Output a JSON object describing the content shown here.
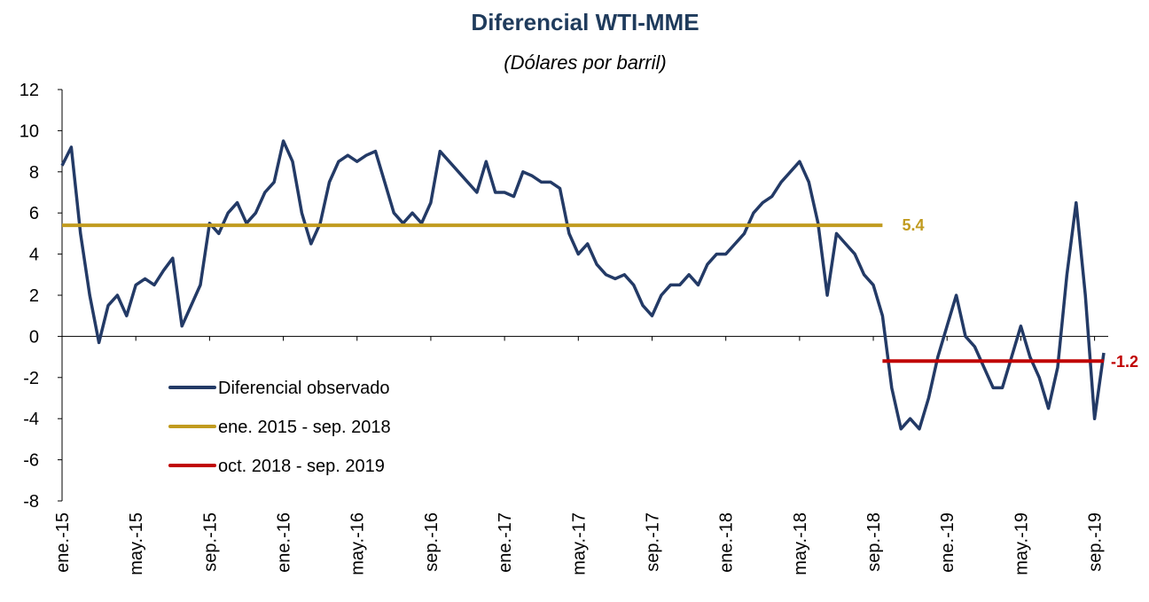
{
  "chart_data": {
    "type": "line",
    "title": "Diferencial WTI-MME",
    "subtitle": "(Dólares por barril)",
    "xlim": [
      0,
      56.5
    ],
    "xticks": [
      {
        "value": 0,
        "label": "ene.-15"
      },
      {
        "value": 4,
        "label": "may.-15"
      },
      {
        "value": 8,
        "label": "sep.-15"
      },
      {
        "value": 12,
        "label": "ene.-16"
      },
      {
        "value": 16,
        "label": "may.-16"
      },
      {
        "value": 20,
        "label": "sep.-16"
      },
      {
        "value": 24,
        "label": "ene.-17"
      },
      {
        "value": 28,
        "label": "may.-17"
      },
      {
        "value": 32,
        "label": "sep.-17"
      },
      {
        "value": 36,
        "label": "ene.-18"
      },
      {
        "value": 40,
        "label": "may.-18"
      },
      {
        "value": 44,
        "label": "sep.-18"
      },
      {
        "value": 48,
        "label": "ene.-19"
      },
      {
        "value": 52,
        "label": "may.-19"
      },
      {
        "value": 56,
        "label": "sep.-19"
      }
    ],
    "ylim": [
      -8,
      12
    ],
    "yticks": [
      -8,
      -6,
      -4,
      -2,
      0,
      2,
      4,
      6,
      8,
      10,
      12
    ],
    "legend": "lower left",
    "series": [
      {
        "name": "Diferencial observado",
        "color": "#233a66",
        "x": [
          0,
          0.5,
          1,
          1.5,
          2,
          2.5,
          3,
          3.5,
          4,
          4.5,
          5,
          5.5,
          6,
          6.5,
          7,
          7.5,
          8,
          8.5,
          9,
          9.5,
          10,
          10.5,
          11,
          11.5,
          12,
          12.5,
          13,
          13.5,
          14,
          14.5,
          15,
          15.5,
          16,
          16.5,
          17,
          17.5,
          18,
          18.5,
          19,
          19.5,
          20,
          20.5,
          21,
          21.5,
          22,
          22.5,
          23,
          23.5,
          24,
          24.5,
          25,
          25.5,
          26,
          26.5,
          27,
          27.5,
          28,
          28.5,
          29,
          29.5,
          30,
          30.5,
          31,
          31.5,
          32,
          32.5,
          33,
          33.5,
          34,
          34.5,
          35,
          35.5,
          36,
          36.5,
          37,
          37.5,
          38,
          38.5,
          39,
          39.5,
          40,
          40.5,
          41,
          41.5,
          42,
          42.5,
          43,
          43.5,
          44,
          44.5,
          45,
          45.5,
          46,
          46.5,
          47,
          47.5,
          48,
          48.5,
          49,
          49.5,
          50,
          50.5,
          51,
          51.5,
          52,
          52.5,
          53,
          53.5,
          54,
          54.5,
          55,
          55.5,
          56,
          56.5
        ],
        "values": [
          8.3,
          9.2,
          5,
          2,
          -0.3,
          1.5,
          2,
          1,
          2.5,
          2.8,
          2.5,
          3.2,
          3.8,
          0.5,
          1.5,
          2.5,
          5.5,
          5,
          6,
          6.5,
          5.5,
          6,
          7,
          7.5,
          9.5,
          8.5,
          6,
          4.5,
          5.5,
          7.5,
          8.5,
          8.8,
          8.5,
          8.8,
          9,
          7.5,
          6,
          5.5,
          6,
          5.5,
          6.5,
          9,
          8.5,
          8,
          7.5,
          7,
          8.5,
          7,
          7,
          6.8,
          8,
          7.8,
          7.5,
          7.5,
          7.2,
          5,
          4,
          4.5,
          3.5,
          3,
          2.8,
          3,
          2.5,
          1.5,
          1,
          2,
          2.5,
          2.5,
          3,
          2.5,
          3.5,
          4,
          4,
          4.5,
          5,
          6,
          6.5,
          6.8,
          7.5,
          8,
          8.5,
          7.5,
          5.5,
          2,
          5,
          4.5,
          4,
          3,
          2.5,
          1,
          -2.5,
          -4.5,
          -4,
          -4.5,
          -3,
          -1,
          0.5,
          2,
          0,
          -0.5,
          -1.5,
          -2.5,
          -2.5,
          -1,
          0.5,
          -1,
          -2,
          -3.5,
          -1.5,
          3,
          6.5,
          2,
          -4,
          -0.8
        ]
      },
      {
        "name": "ene. 2015 - sep. 2018",
        "color": "#c19b1f",
        "x": [
          0,
          44.5
        ],
        "values": [
          5.4,
          5.4
        ]
      },
      {
        "name": "oct. 2018 - sep. 2019",
        "color": "#c00000",
        "x": [
          44.5,
          56.5
        ],
        "values": [
          -1.2,
          -1.2
        ]
      }
    ]
  }
}
